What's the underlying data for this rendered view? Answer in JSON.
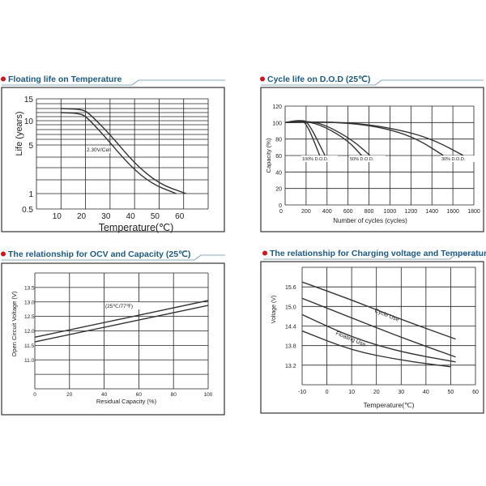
{
  "colors": {
    "title": "#1d5a86",
    "bullet": "#d3141c",
    "grid": "#222222",
    "curve": "#333333"
  },
  "chart_data": [
    {
      "type": "line",
      "title": "Floating life on Temperature",
      "xlabel": "Temperature(℃)",
      "ylabel": "Life (years)",
      "xticks": [
        "10",
        "20",
        "30",
        "40",
        "50",
        "60"
      ],
      "yticks": [
        "15",
        "10",
        "5",
        "1",
        "0.5"
      ],
      "xlim": [
        0,
        70
      ],
      "ylim": [
        0.5,
        15
      ],
      "yscale": "log-like",
      "annotation": "2.30V/Cell",
      "series": [
        {
          "name": "upper",
          "x": [
            10,
            19,
            22,
            30,
            40,
            50,
            61
          ],
          "y": [
            13,
            12.8,
            11.5,
            7,
            3.4,
            1.7,
            1
          ]
        },
        {
          "name": "lower",
          "x": [
            10,
            18,
            21,
            28,
            38,
            47,
            57
          ],
          "y": [
            12,
            11.8,
            10.6,
            6.5,
            3.2,
            1.7,
            1
          ]
        }
      ]
    },
    {
      "type": "line",
      "title": "Cycle life on D.O.D (25℃)",
      "xlabel": "Number of cycles (cycles)",
      "ylabel": "Capacity (%)",
      "xticks": [
        "0",
        "200",
        "400",
        "600",
        "800",
        "1000",
        "1200",
        "1400",
        "1600",
        "1800"
      ],
      "yticks": [
        "0",
        "20",
        "40",
        "60",
        "80",
        "100",
        "120"
      ],
      "xlim": [
        0,
        1800
      ],
      "ylim": [
        0,
        120
      ],
      "labels": [
        "100% D.O.D.",
        "50% D.O.D.",
        "30% D.O.D."
      ],
      "series": [
        {
          "name": "100% D.O.D. a",
          "x": [
            0,
            120,
            200,
            330
          ],
          "y": [
            100,
            103,
            101,
            60
          ]
        },
        {
          "name": "100% D.O.D. b",
          "x": [
            0,
            150,
            220,
            380
          ],
          "y": [
            100,
            103,
            101,
            60
          ]
        },
        {
          "name": "50% D.O.D. a",
          "x": [
            0,
            200,
            380,
            600,
            730
          ],
          "y": [
            100,
            102,
            95,
            78,
            60
          ]
        },
        {
          "name": "50% D.O.D. b",
          "x": [
            0,
            250,
            420,
            650,
            810
          ],
          "y": [
            100,
            102,
            95,
            78,
            60
          ]
        },
        {
          "name": "30% D.O.D. a",
          "x": [
            0,
            400,
            800,
            1100,
            1300,
            1510
          ],
          "y": [
            100,
            101,
            97,
            88,
            77,
            60
          ]
        },
        {
          "name": "30% D.O.D. b",
          "x": [
            0,
            400,
            800,
            1200,
            1450,
            1700
          ],
          "y": [
            100,
            101,
            98,
            88,
            77,
            60
          ]
        }
      ]
    },
    {
      "type": "line",
      "title": "The relationship  for OCV and Capacity (25℃)",
      "xlabel": "Residual Capacity (%)",
      "ylabel": "Open Circuit Voltage (V)",
      "xticks": [
        "0",
        "20",
        "40",
        "60",
        "80",
        "100"
      ],
      "yticks": [
        "13.5",
        "13.0",
        "12.5",
        "12.0",
        "11.5",
        "11.0"
      ],
      "xlim": [
        0,
        100
      ],
      "ylim": [
        10,
        14
      ],
      "annotation": "(25℃/77℉)",
      "series": [
        {
          "name": "upper",
          "x": [
            0,
            100
          ],
          "y": [
            11.78,
            13.05
          ]
        },
        {
          "name": "lower",
          "x": [
            0,
            100
          ],
          "y": [
            11.62,
            12.88
          ]
        }
      ]
    },
    {
      "type": "line",
      "title": "The relationship for Charging voltage and Temperature",
      "xlabel": "Temperature(℃)",
      "ylabel": "Voltage (V)",
      "xticks": [
        "-10",
        "0",
        "10",
        "20",
        "30",
        "40",
        "50",
        "60"
      ],
      "yticks": [
        "15.6",
        "15.0",
        "14.4",
        "13.8",
        "13.2"
      ],
      "xlim": [
        -10,
        60
      ],
      "ylim": [
        12.6,
        16.2
      ],
      "labels": [
        "Cycle Use",
        "Floating Use"
      ],
      "series": [
        {
          "name": "Cycle Use upper",
          "x": [
            -10,
            10,
            30,
            52
          ],
          "y": [
            15.75,
            15.2,
            14.6,
            14.0
          ]
        },
        {
          "name": "Cycle Use lower",
          "x": [
            -10,
            10,
            30,
            52
          ],
          "y": [
            15.25,
            14.65,
            14.05,
            13.45
          ]
        },
        {
          "name": "Floating Use upper",
          "x": [
            -10,
            10,
            30,
            52
          ],
          "y": [
            14.75,
            14.05,
            13.6,
            13.3
          ]
        },
        {
          "name": "Floating Use lower",
          "x": [
            -10,
            10,
            30,
            50
          ],
          "y": [
            14.25,
            13.65,
            13.35,
            13.15
          ]
        }
      ]
    }
  ]
}
